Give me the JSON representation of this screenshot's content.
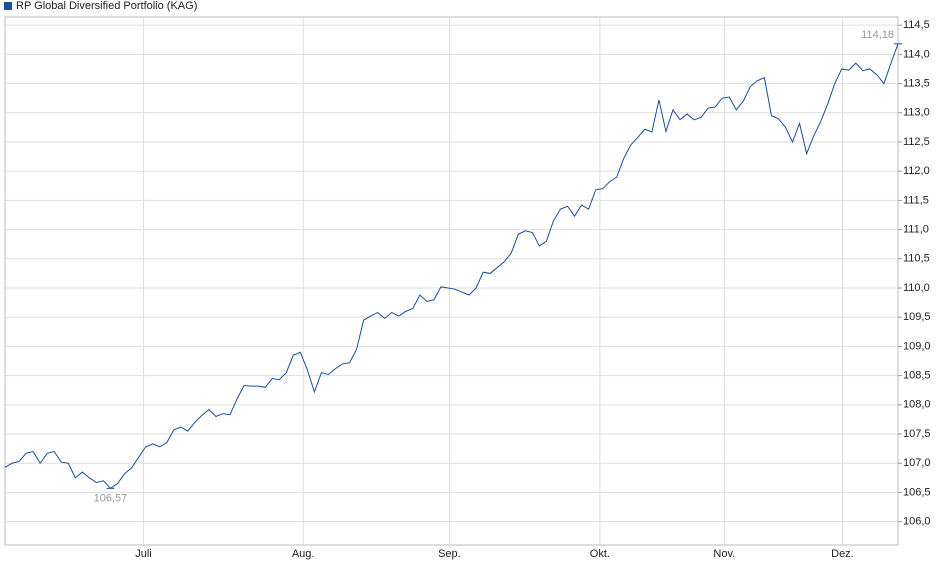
{
  "chart_data": {
    "type": "line",
    "series": [
      {
        "name": "RP Global Diversified Portfolio (KAG)",
        "color": "#1a4f9c",
        "values": [
          106.93,
          107.0,
          107.03,
          107.17,
          107.2,
          107.0,
          107.17,
          107.2,
          107.02,
          107.0,
          106.75,
          106.85,
          106.75,
          106.67,
          106.7,
          106.57,
          106.65,
          106.82,
          106.92,
          107.1,
          107.28,
          107.33,
          107.28,
          107.35,
          107.57,
          107.62,
          107.55,
          107.7,
          107.82,
          107.92,
          107.8,
          107.85,
          107.83,
          108.1,
          108.33,
          108.32,
          108.32,
          108.3,
          108.45,
          108.43,
          108.55,
          108.85,
          108.9,
          108.6,
          108.22,
          108.55,
          108.52,
          108.62,
          108.7,
          108.72,
          108.95,
          109.45,
          109.52,
          109.58,
          109.48,
          109.58,
          109.52,
          109.6,
          109.65,
          109.88,
          109.77,
          109.8,
          110.02,
          110.0,
          109.98,
          109.93,
          109.88,
          110.0,
          110.27,
          110.25,
          110.35,
          110.45,
          110.6,
          110.92,
          110.98,
          110.95,
          110.72,
          110.8,
          111.15,
          111.35,
          111.4,
          111.23,
          111.42,
          111.35,
          111.68,
          111.7,
          111.82,
          111.9,
          112.22,
          112.45,
          112.58,
          112.72,
          112.67,
          113.22,
          112.68,
          113.05,
          112.88,
          112.98,
          112.88,
          112.92,
          113.08,
          113.1,
          113.25,
          113.27,
          113.05,
          113.2,
          113.45,
          113.55,
          113.6,
          112.95,
          112.9,
          112.75,
          112.5,
          112.82,
          112.3,
          112.6,
          112.85,
          113.15,
          113.5,
          113.75,
          113.73,
          113.85,
          113.72,
          113.75,
          113.65,
          113.5,
          113.85,
          114.18
        ]
      }
    ],
    "annotations": [
      {
        "index": 15,
        "value": 106.57,
        "label": "106,57"
      },
      {
        "index": 127,
        "value": 114.18,
        "label": "114,18"
      }
    ],
    "xlim": [
      0,
      127
    ],
    "xticks": [
      {
        "value": 19.7,
        "label": "Juli"
      },
      {
        "value": 42.4,
        "label": "Aug."
      },
      {
        "value": 63.2,
        "label": "Sep."
      },
      {
        "value": 84.6,
        "label": "Okt."
      },
      {
        "value": 102.3,
        "label": "Nov."
      },
      {
        "value": 119.1,
        "label": "Dez."
      }
    ],
    "ylim": [
      105.6,
      114.64
    ],
    "yticks": [
      {
        "value": 106,
        "label": "106,0"
      },
      {
        "value": 106.5,
        "label": "106,5"
      },
      {
        "value": 107,
        "label": "107,0"
      },
      {
        "value": 107.5,
        "label": "107,5"
      },
      {
        "value": 108,
        "label": "108,0"
      },
      {
        "value": 108.5,
        "label": "108,5"
      },
      {
        "value": 109,
        "label": "109,0"
      },
      {
        "value": 109.5,
        "label": "109,5"
      },
      {
        "value": 110,
        "label": "110,0"
      },
      {
        "value": 110.5,
        "label": "110,5"
      },
      {
        "value": 111,
        "label": "111,0"
      },
      {
        "value": 111.5,
        "label": "111,5"
      },
      {
        "value": 112,
        "label": "112,0"
      },
      {
        "value": 112.5,
        "label": "112,5"
      },
      {
        "value": 113,
        "label": "113,0"
      },
      {
        "value": 113.5,
        "label": "113,5"
      },
      {
        "value": 114,
        "label": "114,0"
      },
      {
        "value": 114.5,
        "label": "114,5"
      }
    ],
    "grid": true
  }
}
